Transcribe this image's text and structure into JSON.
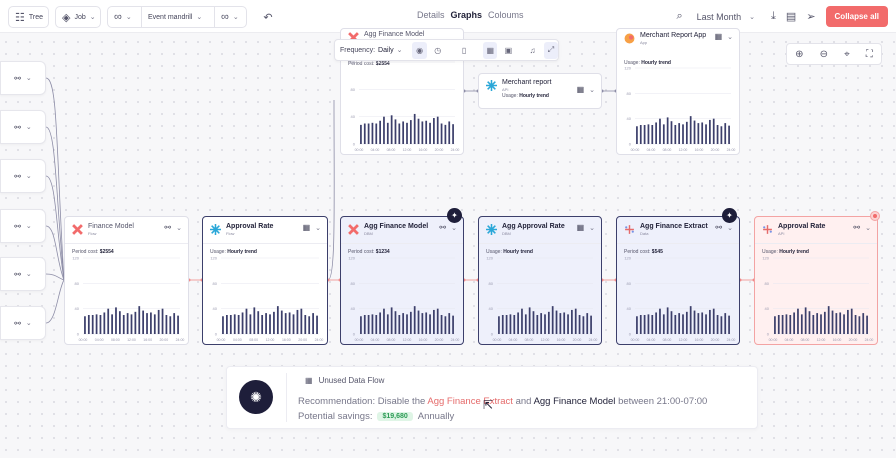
{
  "toolbar": {
    "tree_label": "Tree",
    "job_label": "Job",
    "event_label": "Event mandrill",
    "tabs": [
      "Details",
      "Graphs",
      "Coloums"
    ],
    "date_range": "Last Month",
    "collapse_label": "Collapse all"
  },
  "float_toolbar": {
    "frequency_label": "Frequency:",
    "frequency_value": "Daily"
  },
  "cards": {
    "agg_finance_top": {
      "title": "Agg Finance Model",
      "metric_label": "Period cost:",
      "metric_value": "$2554"
    },
    "merchant_mid": {
      "title": "Merchant report",
      "sub": "API",
      "metric_label": "Usage:",
      "metric_value": "Hourly trend"
    },
    "merchant_app": {
      "title": "Merchant Report App",
      "sub": "App",
      "metric_label": "Usage:",
      "metric_value": "Hourly trend"
    },
    "finance_model": {
      "title": "Finance Model",
      "sub": "Flow",
      "metric_label": "Period cost:",
      "metric_value": "$2554"
    },
    "approval_rate": {
      "title": "Approval Rate",
      "sub": "Flow",
      "metric_label": "Usage:",
      "metric_value": "Hourly trend"
    },
    "agg_finance_main": {
      "title": "Agg Finance Model",
      "sub": "DBM",
      "metric_label": "Period cost:",
      "metric_value": "$1234"
    },
    "agg_approval": {
      "title": "Agg Approval Rate",
      "sub": "DBM",
      "metric_label": "Usage:",
      "metric_value": "Hourly trend"
    },
    "agg_finance_extract": {
      "title": "Agg Finance Extract",
      "sub": "Data",
      "metric_label": "Period cost:",
      "metric_value": "$545"
    },
    "approval_rate_api": {
      "title": "Approval Rate",
      "sub": "API",
      "metric_label": "Usage:",
      "metric_value": "Hourly trend"
    }
  },
  "axis": {
    "y_ticks": [
      "120",
      "80",
      "40",
      "0"
    ],
    "x_ticks": [
      "00:00",
      "04:00",
      "08:00",
      "12:00",
      "16:00",
      "20:00",
      "24:00"
    ]
  },
  "chart_data": {
    "type": "bar",
    "values": [
      28,
      30,
      30,
      31,
      30,
      34,
      40,
      31,
      42,
      36,
      30,
      33,
      31,
      35,
      44,
      37,
      33,
      34,
      31,
      38,
      40,
      30,
      28,
      33,
      29
    ],
    "ylim": [
      0,
      120
    ]
  },
  "recommendation": {
    "title": "Unused Data Flow",
    "prefix": "Recommendation: Disable the",
    "highlight": "Agg Finance Extract",
    "mid": "and",
    "target": "Agg Finance Model",
    "suffix": "between 21:00-07:00",
    "savings_label": "Potential savings:",
    "savings_value": "$19,680",
    "savings_period": "Annually"
  },
  "colors": {
    "accent": "#f26b6b",
    "bar": "#3c3f6b",
    "dark": "#1e1e3a",
    "savings": "#2c9b55"
  }
}
